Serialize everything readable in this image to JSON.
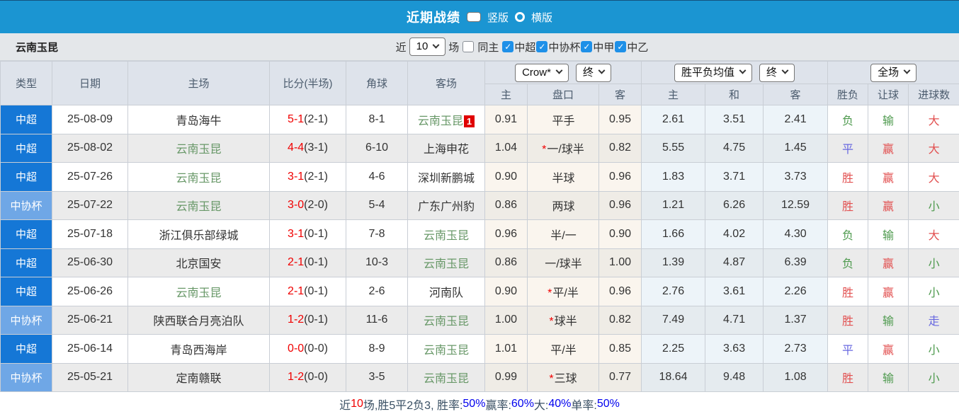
{
  "titlebar": {
    "title": "近期战绩",
    "radio_selected": "竖版",
    "radio_unselected": "横版"
  },
  "filterbar": {
    "team": "云南玉昆",
    "near_label": "近",
    "count_value": "10",
    "games_label": "场",
    "same_home_label": "同主",
    "league_filters": [
      {
        "label": "中超",
        "checked": true
      },
      {
        "label": "中协杯",
        "checked": true
      },
      {
        "label": "中甲",
        "checked": true
      },
      {
        "label": "中乙",
        "checked": true
      }
    ],
    "check_glyph": "✓"
  },
  "header": {
    "type": "类型",
    "date": "日期",
    "home": "主场",
    "score": "比分(半场)",
    "corners": "角球",
    "away": "客场",
    "odds_company_select": "Crow*",
    "odds_stage_select": "终",
    "avg_select": "胜平负均值",
    "avg_stage_select": "终",
    "scope_select": "全场",
    "sub_home": "主",
    "sub_handicap": "盘口",
    "sub_away": "客",
    "sub_avg_home": "主",
    "sub_avg_draw": "和",
    "sub_avg_away": "客",
    "sub_result": "胜负",
    "sub_let": "让球",
    "sub_goals": "进球数"
  },
  "rows": [
    {
      "league": "中超",
      "league_type": "super",
      "date": "25-08-09",
      "home": "青岛海牛",
      "home_green": false,
      "score": "5-1",
      "half": "(2-1)",
      "corners": "8-1",
      "away": "云南玉昆",
      "away_green": true,
      "badge": "1",
      "odds_home": "0.91",
      "star": "",
      "handicap": "平手",
      "odds_away": "0.95",
      "avg_home": "2.61",
      "avg_draw": "3.51",
      "avg_away": "2.41",
      "result": "负",
      "result_color": "green",
      "let_result": "输",
      "let_color": "green",
      "goals": "大",
      "goals_color": "red"
    },
    {
      "league": "中超",
      "league_type": "super",
      "date": "25-08-02",
      "home": "云南玉昆",
      "home_green": true,
      "score": "4-4",
      "half": "(3-1)",
      "corners": "6-10",
      "away": "上海申花",
      "away_green": false,
      "badge": "",
      "odds_home": "1.04",
      "star": "*",
      "handicap": "一/球半",
      "odds_away": "0.82",
      "avg_home": "5.55",
      "avg_draw": "4.75",
      "avg_away": "1.45",
      "result": "平",
      "result_color": "blue",
      "let_result": "赢",
      "let_color": "red",
      "goals": "大",
      "goals_color": "red"
    },
    {
      "league": "中超",
      "league_type": "super",
      "date": "25-07-26",
      "home": "云南玉昆",
      "home_green": true,
      "score": "3-1",
      "half": "(2-1)",
      "corners": "4-6",
      "away": "深圳新鹏城",
      "away_green": false,
      "badge": "",
      "odds_home": "0.90",
      "star": "",
      "handicap": "半球",
      "odds_away": "0.96",
      "avg_home": "1.83",
      "avg_draw": "3.71",
      "avg_away": "3.73",
      "result": "胜",
      "result_color": "red",
      "let_result": "赢",
      "let_color": "red",
      "goals": "大",
      "goals_color": "red"
    },
    {
      "league": "中协杯",
      "league_type": "cup",
      "date": "25-07-22",
      "home": "云南玉昆",
      "home_green": true,
      "score": "3-0",
      "half": "(2-0)",
      "corners": "5-4",
      "away": "广东广州豹",
      "away_green": false,
      "badge": "",
      "odds_home": "0.86",
      "star": "",
      "handicap": "两球",
      "odds_away": "0.96",
      "avg_home": "1.21",
      "avg_draw": "6.26",
      "avg_away": "12.59",
      "result": "胜",
      "result_color": "red",
      "let_result": "赢",
      "let_color": "red",
      "goals": "小",
      "goals_color": "green"
    },
    {
      "league": "中超",
      "league_type": "super",
      "date": "25-07-18",
      "home": "浙江俱乐部绿城",
      "home_green": false,
      "score": "3-1",
      "half": "(0-1)",
      "corners": "7-8",
      "away": "云南玉昆",
      "away_green": true,
      "badge": "",
      "odds_home": "0.96",
      "star": "",
      "handicap": "半/一",
      "odds_away": "0.90",
      "avg_home": "1.66",
      "avg_draw": "4.02",
      "avg_away": "4.30",
      "result": "负",
      "result_color": "green",
      "let_result": "输",
      "let_color": "green",
      "goals": "大",
      "goals_color": "red"
    },
    {
      "league": "中超",
      "league_type": "super",
      "date": "25-06-30",
      "home": "北京国安",
      "home_green": false,
      "score": "2-1",
      "half": "(0-1)",
      "corners": "10-3",
      "away": "云南玉昆",
      "away_green": true,
      "badge": "",
      "odds_home": "0.86",
      "star": "",
      "handicap": "一/球半",
      "odds_away": "1.00",
      "avg_home": "1.39",
      "avg_draw": "4.87",
      "avg_away": "6.39",
      "result": "负",
      "result_color": "green",
      "let_result": "赢",
      "let_color": "red",
      "goals": "小",
      "goals_color": "green"
    },
    {
      "league": "中超",
      "league_type": "super",
      "date": "25-06-26",
      "home": "云南玉昆",
      "home_green": true,
      "score": "2-1",
      "half": "(0-1)",
      "corners": "2-6",
      "away": "河南队",
      "away_green": false,
      "badge": "",
      "odds_home": "0.90",
      "star": "*",
      "handicap": "平/半",
      "odds_away": "0.96",
      "avg_home": "2.76",
      "avg_draw": "3.61",
      "avg_away": "2.26",
      "result": "胜",
      "result_color": "red",
      "let_result": "赢",
      "let_color": "red",
      "goals": "小",
      "goals_color": "green"
    },
    {
      "league": "中协杯",
      "league_type": "cup",
      "date": "25-06-21",
      "home": "陕西联合月亮泊队",
      "home_green": false,
      "score": "1-2",
      "half": "(0-1)",
      "corners": "11-6",
      "away": "云南玉昆",
      "away_green": true,
      "badge": "",
      "odds_home": "1.00",
      "star": "*",
      "handicap": "球半",
      "odds_away": "0.82",
      "avg_home": "7.49",
      "avg_draw": "4.71",
      "avg_away": "1.37",
      "result": "胜",
      "result_color": "red",
      "let_result": "输",
      "let_color": "green",
      "goals": "走",
      "goals_color": "blue"
    },
    {
      "league": "中超",
      "league_type": "super",
      "date": "25-06-14",
      "home": "青岛西海岸",
      "home_green": false,
      "score": "0-0",
      "half": "(0-0)",
      "corners": "8-9",
      "away": "云南玉昆",
      "away_green": true,
      "badge": "",
      "odds_home": "1.01",
      "star": "",
      "handicap": "平/半",
      "odds_away": "0.85",
      "avg_home": "2.25",
      "avg_draw": "3.63",
      "avg_away": "2.73",
      "result": "平",
      "result_color": "blue",
      "let_result": "赢",
      "let_color": "red",
      "goals": "小",
      "goals_color": "green"
    },
    {
      "league": "中协杯",
      "league_type": "cup",
      "date": "25-05-21",
      "home": "定南赣联",
      "home_green": false,
      "score": "1-2",
      "half": "(0-0)",
      "corners": "3-5",
      "away": "云南玉昆",
      "away_green": true,
      "badge": "",
      "odds_home": "0.99",
      "star": "*",
      "handicap": "三球",
      "odds_away": "0.77",
      "avg_home": "18.64",
      "avg_draw": "9.48",
      "avg_away": "1.08",
      "result": "胜",
      "result_color": "red",
      "let_result": "输",
      "let_color": "green",
      "goals": "小",
      "goals_color": "green"
    }
  ],
  "footer": {
    "segments": [
      {
        "text": "近",
        "color": "label"
      },
      {
        "text": "10",
        "color": "red"
      },
      {
        "text": "场,胜5平2负3, 胜率:",
        "color": "label"
      },
      {
        "text": "50%",
        "color": "blue"
      },
      {
        "text": " 赢率:",
        "color": "label"
      },
      {
        "text": "60%",
        "color": "blue"
      },
      {
        "text": " 大:",
        "color": "label"
      },
      {
        "text": "40%",
        "color": "blue"
      },
      {
        "text": " 单率:",
        "color": "label"
      },
      {
        "text": "50%",
        "color": "blue"
      }
    ]
  },
  "colors": {
    "titlebar_bg": "#1b95d2",
    "league_super": "#1577d6",
    "league_cup": "#6fa7e6",
    "score_red": "#f00000",
    "team_green": "#689868",
    "result_red": "#e25050",
    "result_green": "#4e9a4e",
    "result_blue": "#6868e0",
    "pct_blue": "#0000ee"
  }
}
